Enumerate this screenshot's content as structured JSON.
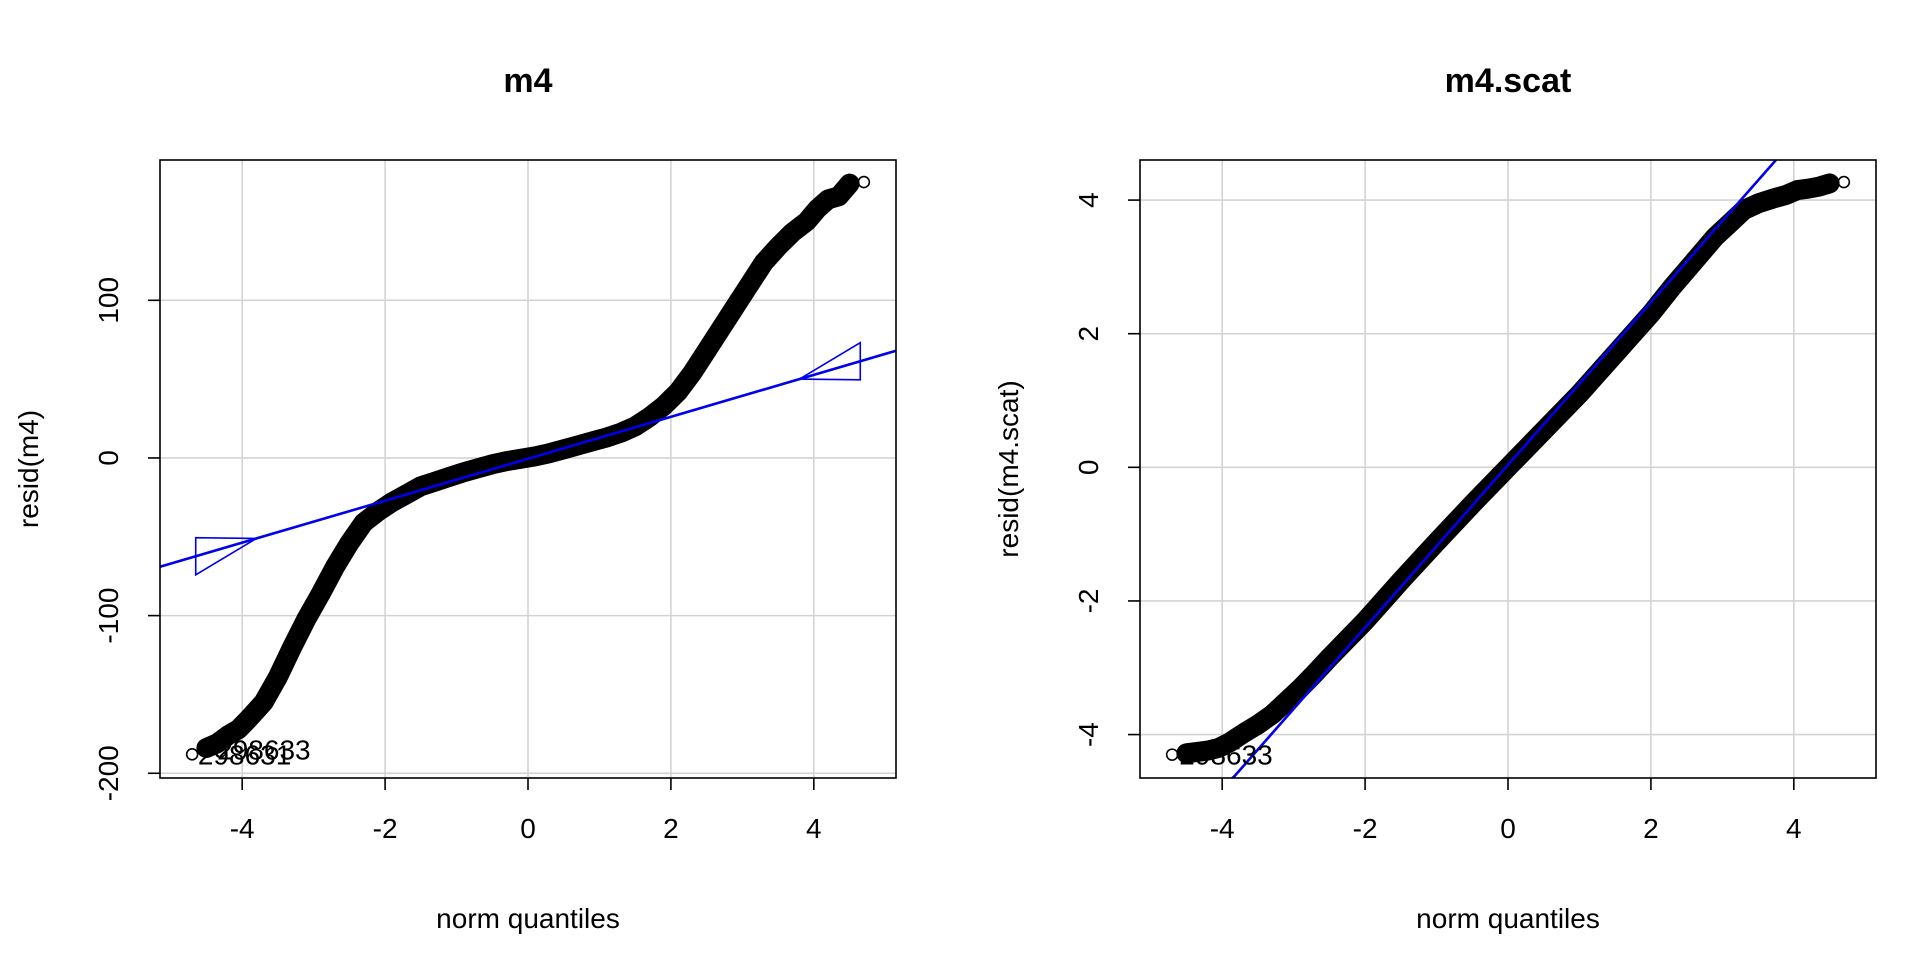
{
  "chart_data": [
    {
      "type": "scatter",
      "title": "m4",
      "xlabel": "norm quantiles",
      "ylabel": "resid(m4)",
      "xlim": [
        -5.15,
        5.15
      ],
      "ylim": [
        -203,
        189
      ],
      "xticks": [
        -4,
        -2,
        0,
        2,
        4
      ],
      "xtick_labels": [
        "-4",
        "-2",
        "0",
        "2",
        "4"
      ],
      "yticks": [
        -200,
        -100,
        0,
        100
      ],
      "ytick_labels": [
        "-200",
        "-100",
        "0",
        "100"
      ],
      "grid": true,
      "series": [
        {
          "x": [
            -4.7,
            -4.5,
            -4.35,
            -4.2,
            -4.05,
            -3.9,
            -3.7,
            -3.5,
            -3.3,
            -3.1,
            -2.9,
            -2.7,
            -2.5,
            -2.3,
            -2.1,
            -1.9,
            -1.7,
            -1.5,
            -1.3,
            -1.1,
            -0.9,
            -0.7,
            -0.5,
            -0.3,
            -0.1,
            0.1,
            0.3,
            0.5,
            0.7,
            0.9,
            1.1,
            1.3,
            1.5,
            1.7,
            1.9,
            2.1,
            2.3,
            2.5,
            2.7,
            2.9,
            3.1,
            3.3,
            3.5,
            3.7,
            3.9,
            4.05,
            4.2,
            4.35,
            4.5,
            4.7
          ],
          "y": [
            -188,
            -184,
            -181,
            -176,
            -172,
            -165,
            -155,
            -139,
            -120,
            -102,
            -86,
            -69,
            -54,
            -41,
            -34,
            -28,
            -23,
            -18,
            -15,
            -12,
            -9,
            -6.5,
            -4,
            -2,
            -0.5,
            1,
            3,
            5.5,
            8,
            10.5,
            13,
            16,
            20,
            26,
            33,
            42,
            54,
            68,
            82,
            96,
            110,
            124,
            134,
            143,
            150,
            158,
            164,
            166,
            174,
            175
          ]
        }
      ],
      "reference_line": {
        "x": [
          -5.15,
          5.15
        ],
        "y": [
          -69,
          68
        ]
      },
      "annotations": [
        {
          "text": "298633",
          "x": -4.35,
          "y": -185
        },
        {
          "text": "298631",
          "x": -4.62,
          "y": -188
        }
      ]
    },
    {
      "type": "scatter",
      "title": "m4.scat",
      "xlabel": "norm quantiles",
      "ylabel": "resid(m4.scat)",
      "xlim": [
        -5.15,
        5.15
      ],
      "ylim": [
        -4.65,
        4.6
      ],
      "xticks": [
        -4,
        -2,
        0,
        2,
        4
      ],
      "xtick_labels": [
        "-4",
        "-2",
        "0",
        "2",
        "4"
      ],
      "yticks": [
        -4,
        -2,
        0,
        2,
        4
      ],
      "ytick_labels": [
        "-4",
        "-2",
        "0",
        "2",
        "4"
      ],
      "grid": true,
      "series": [
        {
          "x": [
            -4.7,
            -4.5,
            -4.35,
            -4.2,
            -4.05,
            -3.9,
            -3.7,
            -3.5,
            -3.3,
            -3.1,
            -2.9,
            -2.7,
            -2.5,
            -2.0,
            -1.5,
            -1.0,
            -0.5,
            0.0,
            0.5,
            1.0,
            1.5,
            2.0,
            2.3,
            2.5,
            2.7,
            2.9,
            3.1,
            3.3,
            3.5,
            3.7,
            3.9,
            4.05,
            4.2,
            4.35,
            4.5,
            4.7
          ],
          "y": [
            -4.3,
            -4.28,
            -4.26,
            -4.24,
            -4.2,
            -4.12,
            -3.98,
            -3.85,
            -3.7,
            -3.5,
            -3.3,
            -3.08,
            -2.85,
            -2.3,
            -1.7,
            -1.12,
            -0.55,
            0.0,
            0.55,
            1.1,
            1.7,
            2.3,
            2.7,
            2.95,
            3.2,
            3.45,
            3.65,
            3.85,
            3.95,
            4.02,
            4.08,
            4.15,
            4.17,
            4.2,
            4.25,
            4.27
          ]
        }
      ],
      "reference_line": {
        "x": [
          -3.85,
          3.75
        ],
        "y": [
          -4.65,
          4.6
        ]
      },
      "annotations": [
        {
          "text": "298633",
          "x": -4.6,
          "y": -4.3
        }
      ]
    }
  ]
}
